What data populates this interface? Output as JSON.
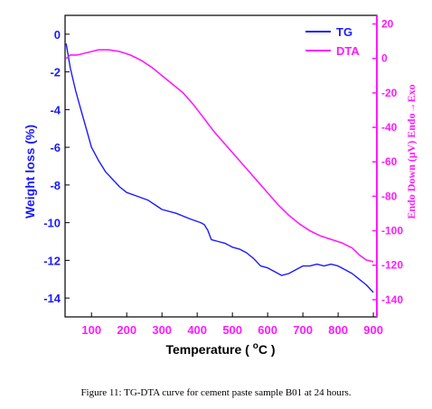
{
  "caption": "Figure 11: TG-DTA curve for cement paste sample B01 at 24 hours.",
  "chart_data": {
    "type": "line",
    "xlabel": "Temperature ( °C )",
    "xlabel_main": "Temperature ( ",
    "xlabel_unit_sup": "o",
    "xlabel_unit": "C )",
    "ylabel_left": "Weight loss (%)",
    "ylabel_right": "Endo Down (μV) Endo→Exo",
    "xlim": [
      25,
      910
    ],
    "ylim_left": [
      -15,
      1
    ],
    "ylim_right": [
      -150,
      25
    ],
    "x_ticks": [
      100,
      200,
      300,
      400,
      500,
      600,
      700,
      800,
      900
    ],
    "y_ticks_left": [
      0,
      -2,
      -4,
      -6,
      -8,
      -10,
      -12,
      -14
    ],
    "y_ticks_right": [
      20,
      0,
      -20,
      -40,
      -60,
      -80,
      -100,
      -120,
      -140
    ],
    "legend": {
      "position": "top-right"
    },
    "colors": {
      "TG": "#1a1aff",
      "DTA": "#ff1aff"
    },
    "series": [
      {
        "name": "TG",
        "axis": "left",
        "x": [
          28,
          40,
          55,
          70,
          85,
          100,
          120,
          140,
          160,
          180,
          200,
          230,
          260,
          300,
          340,
          380,
          410,
          420,
          430,
          440,
          460,
          480,
          500,
          520,
          540,
          560,
          580,
          600,
          620,
          640,
          660,
          680,
          700,
          720,
          740,
          760,
          780,
          800,
          820,
          840,
          860,
          880,
          900
        ],
        "y": [
          -0.5,
          -1.8,
          -3.0,
          -4.0,
          -5.0,
          -6.0,
          -6.7,
          -7.3,
          -7.7,
          -8.1,
          -8.4,
          -8.6,
          -8.8,
          -9.3,
          -9.5,
          -9.8,
          -10.0,
          -10.1,
          -10.4,
          -10.9,
          -11.0,
          -11.1,
          -11.3,
          -11.4,
          -11.6,
          -11.9,
          -12.3,
          -12.4,
          -12.6,
          -12.8,
          -12.7,
          -12.5,
          -12.3,
          -12.3,
          -12.2,
          -12.3,
          -12.2,
          -12.3,
          -12.5,
          -12.7,
          -13.0,
          -13.3,
          -13.7
        ]
      },
      {
        "name": "DTA",
        "axis": "right",
        "x": [
          28,
          40,
          60,
          80,
          100,
          120,
          150,
          180,
          210,
          240,
          270,
          300,
          330,
          360,
          390,
          420,
          450,
          480,
          510,
          540,
          570,
          600,
          630,
          660,
          690,
          720,
          750,
          780,
          810,
          840,
          860,
          880,
          900
        ],
        "y": [
          0,
          2,
          2,
          3,
          4,
          5,
          5,
          4,
          2,
          -1,
          -5,
          -10,
          -15,
          -20,
          -27,
          -35,
          -43,
          -50,
          -57,
          -64,
          -71,
          -78,
          -85,
          -91,
          -96,
          -100,
          -103,
          -105,
          -107,
          -110,
          -114,
          -117,
          -118
        ]
      }
    ]
  }
}
